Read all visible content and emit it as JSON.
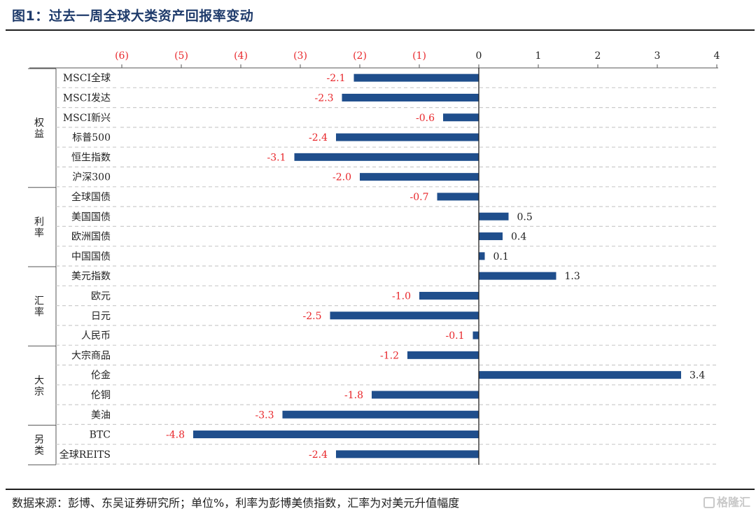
{
  "title": "图1：过去一周全球大类资产回报率变动",
  "footer": "数据来源：彭博、东吴证券研究所；单位%，利率为彭博美债指数，汇率为对美元升值幅度",
  "watermark": "格隆汇",
  "colors": {
    "bar": "#1f4e8c",
    "negative_label": "#e8262a",
    "positive_label": "#1f1f1f",
    "grid": "#cccccc"
  },
  "chart_data": {
    "type": "bar",
    "orientation": "horizontal",
    "xlim": [
      -6,
      4
    ],
    "x_ticks": [
      {
        "value": -6,
        "label": "(6)"
      },
      {
        "value": -5,
        "label": "(5)"
      },
      {
        "value": -4,
        "label": "(4)"
      },
      {
        "value": -3,
        "label": "(3)"
      },
      {
        "value": -2,
        "label": "(2)"
      },
      {
        "value": -1,
        "label": "(1)"
      },
      {
        "value": 0,
        "label": "0"
      },
      {
        "value": 1,
        "label": "1"
      },
      {
        "value": 2,
        "label": "2"
      },
      {
        "value": 3,
        "label": "3"
      },
      {
        "value": 4,
        "label": "4"
      }
    ],
    "groups": [
      {
        "name": "权益",
        "items": [
          {
            "label": "MSCI全球",
            "value": -2.1,
            "value_label": "-2.1"
          },
          {
            "label": "MSCI发达",
            "value": -2.3,
            "value_label": "-2.3"
          },
          {
            "label": "MSCI新兴",
            "value": -0.6,
            "value_label": "-0.6"
          },
          {
            "label": "标普500",
            "value": -2.4,
            "value_label": "-2.4"
          },
          {
            "label": "恒生指数",
            "value": -3.1,
            "value_label": "-3.1"
          },
          {
            "label": "沪深300",
            "value": -2.0,
            "value_label": "-2.0"
          }
        ]
      },
      {
        "name": "利率",
        "items": [
          {
            "label": "全球国债",
            "value": -0.7,
            "value_label": "-0.7"
          },
          {
            "label": "美国国债",
            "value": 0.5,
            "value_label": "0.5"
          },
          {
            "label": "欧洲国债",
            "value": 0.4,
            "value_label": "0.4"
          },
          {
            "label": "中国国债",
            "value": 0.1,
            "value_label": "0.1"
          }
        ]
      },
      {
        "name": "汇率",
        "items": [
          {
            "label": "美元指数",
            "value": 1.3,
            "value_label": "1.3"
          },
          {
            "label": "欧元",
            "value": -1.0,
            "value_label": "-1.0"
          },
          {
            "label": "日元",
            "value": -2.5,
            "value_label": "-2.5"
          },
          {
            "label": "人民币",
            "value": -0.1,
            "value_label": "-0.1"
          }
        ]
      },
      {
        "name": "大宗",
        "items": [
          {
            "label": "大宗商品",
            "value": -1.2,
            "value_label": "-1.2"
          },
          {
            "label": "伦金",
            "value": 3.4,
            "value_label": "3.4"
          },
          {
            "label": "伦铜",
            "value": -1.8,
            "value_label": "-1.8"
          },
          {
            "label": "美油",
            "value": -3.3,
            "value_label": "-3.3"
          }
        ]
      },
      {
        "name": "另类",
        "items": [
          {
            "label": "BTC",
            "value": -4.8,
            "value_label": "-4.8"
          },
          {
            "label": "全球REITS",
            "value": -2.4,
            "value_label": "-2.4"
          }
        ]
      }
    ]
  }
}
